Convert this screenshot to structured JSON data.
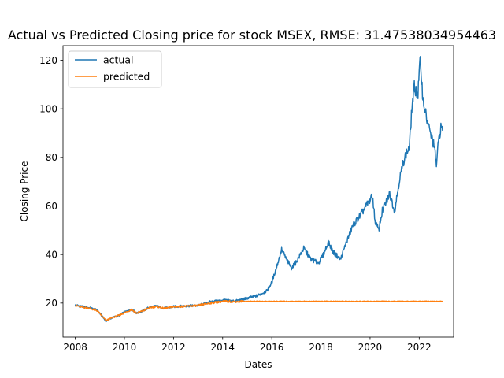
{
  "chart_data": {
    "type": "line",
    "title": "Actual vs Predicted Closing price for stock MSEX, RMSE: 31.47538034954463",
    "xlabel": "Dates",
    "ylabel": "Closing Price",
    "xlim": [
      2007.5,
      2023.4
    ],
    "ylim": [
      6,
      126
    ],
    "xticks": [
      2008,
      2010,
      2012,
      2014,
      2016,
      2018,
      2020,
      2022
    ],
    "xtick_labels": [
      "2008",
      "2010",
      "2012",
      "2014",
      "2016",
      "2018",
      "2020",
      "2022"
    ],
    "yticks": [
      20,
      40,
      60,
      80,
      100,
      120
    ],
    "ytick_labels": [
      "20",
      "40",
      "60",
      "80",
      "100",
      "120"
    ],
    "grid": false,
    "legend_position": "top-left",
    "series": [
      {
        "name": "actual",
        "color": "#1f77b4",
        "points": [
          [
            2008.0,
            19.2
          ],
          [
            2008.3,
            18.5
          ],
          [
            2008.6,
            18.0
          ],
          [
            2008.9,
            17.0
          ],
          [
            2009.1,
            14.5
          ],
          [
            2009.25,
            12.5
          ],
          [
            2009.5,
            14.0
          ],
          [
            2009.8,
            15.0
          ],
          [
            2010.0,
            16.2
          ],
          [
            2010.3,
            17.5
          ],
          [
            2010.5,
            15.8
          ],
          [
            2010.8,
            17.0
          ],
          [
            2011.0,
            18.2
          ],
          [
            2011.3,
            18.8
          ],
          [
            2011.6,
            17.8
          ],
          [
            2012.0,
            18.5
          ],
          [
            2012.5,
            18.8
          ],
          [
            2013.0,
            19.0
          ],
          [
            2013.5,
            20.5
          ],
          [
            2014.0,
            21.2
          ],
          [
            2014.5,
            20.8
          ],
          [
            2015.0,
            22.0
          ],
          [
            2015.4,
            23.0
          ],
          [
            2015.8,
            25.0
          ],
          [
            2016.0,
            28.5
          ],
          [
            2016.2,
            35.0
          ],
          [
            2016.4,
            42.0
          ],
          [
            2016.6,
            38.0
          ],
          [
            2016.8,
            34.5
          ],
          [
            2017.0,
            37.0
          ],
          [
            2017.3,
            42.5
          ],
          [
            2017.6,
            38.0
          ],
          [
            2017.9,
            36.5
          ],
          [
            2018.1,
            40.0
          ],
          [
            2018.3,
            45.0
          ],
          [
            2018.5,
            41.0
          ],
          [
            2018.8,
            38.0
          ],
          [
            2019.0,
            44.0
          ],
          [
            2019.3,
            52.0
          ],
          [
            2019.6,
            56.0
          ],
          [
            2019.9,
            61.0
          ],
          [
            2020.1,
            64.0
          ],
          [
            2020.2,
            54.0
          ],
          [
            2020.35,
            50.0
          ],
          [
            2020.5,
            58.0
          ],
          [
            2020.8,
            65.0
          ],
          [
            2021.0,
            58.0
          ],
          [
            2021.2,
            71.0
          ],
          [
            2021.4,
            80.0
          ],
          [
            2021.6,
            84.0
          ],
          [
            2021.7,
            100.0
          ],
          [
            2021.8,
            109.0
          ],
          [
            2021.95,
            106.0
          ],
          [
            2022.0,
            115.0
          ],
          [
            2022.05,
            120.0
          ],
          [
            2022.15,
            104.0
          ],
          [
            2022.3,
            96.0
          ],
          [
            2022.45,
            90.0
          ],
          [
            2022.6,
            85.0
          ],
          [
            2022.7,
            77.0
          ],
          [
            2022.8,
            88.0
          ],
          [
            2022.9,
            93.0
          ],
          [
            2022.95,
            91.0
          ]
        ]
      },
      {
        "name": "predicted",
        "color": "#ff7f0e",
        "points": [
          [
            2008.0,
            19.0
          ],
          [
            2008.3,
            18.3
          ],
          [
            2008.6,
            17.8
          ],
          [
            2008.9,
            16.8
          ],
          [
            2009.1,
            14.5
          ],
          [
            2009.25,
            12.8
          ],
          [
            2009.5,
            14.0
          ],
          [
            2009.8,
            15.0
          ],
          [
            2010.0,
            16.0
          ],
          [
            2010.3,
            17.3
          ],
          [
            2010.5,
            15.8
          ],
          [
            2010.8,
            17.0
          ],
          [
            2011.0,
            18.0
          ],
          [
            2011.3,
            18.6
          ],
          [
            2011.6,
            17.8
          ],
          [
            2012.0,
            18.4
          ],
          [
            2012.5,
            18.7
          ],
          [
            2013.0,
            19.0
          ],
          [
            2013.5,
            20.0
          ],
          [
            2014.0,
            20.7
          ],
          [
            2014.5,
            20.6
          ],
          [
            2015.0,
            20.7
          ],
          [
            2016.0,
            20.7
          ],
          [
            2018.0,
            20.7
          ],
          [
            2020.0,
            20.7
          ],
          [
            2022.95,
            20.7
          ]
        ]
      }
    ]
  }
}
